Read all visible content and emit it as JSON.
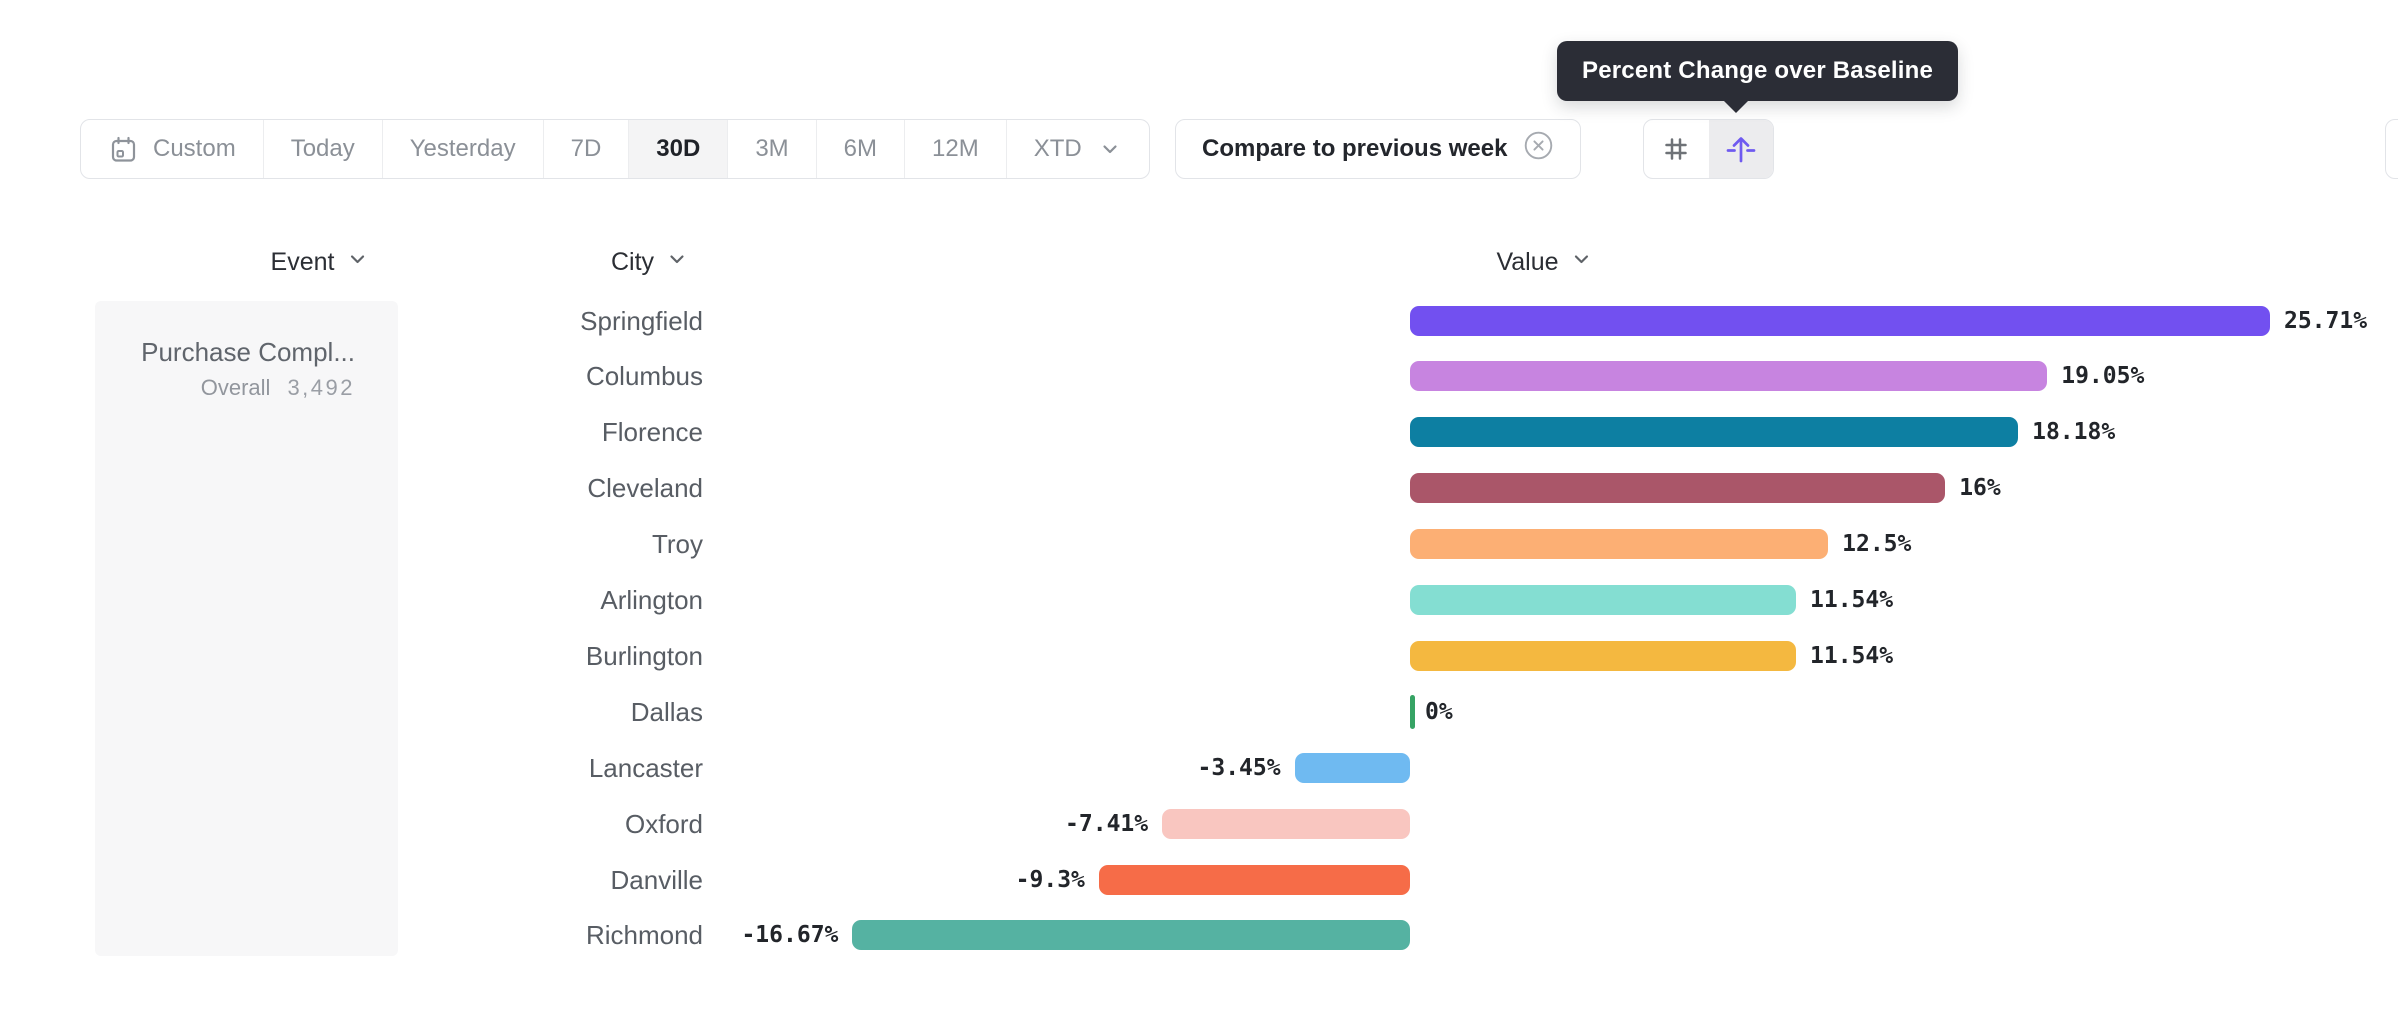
{
  "tooltip": {
    "text": "Percent Change over Baseline"
  },
  "toolbar": {
    "date_ranges": [
      {
        "label": "Custom",
        "icon": "calendar-icon",
        "selected": false,
        "trailing_icon": null
      },
      {
        "label": "Today",
        "icon": null,
        "selected": false,
        "trailing_icon": null
      },
      {
        "label": "Yesterday",
        "icon": null,
        "selected": false,
        "trailing_icon": null
      },
      {
        "label": "7D",
        "icon": null,
        "selected": false,
        "trailing_icon": null
      },
      {
        "label": "30D",
        "icon": null,
        "selected": true,
        "trailing_icon": null
      },
      {
        "label": "3M",
        "icon": null,
        "selected": false,
        "trailing_icon": null
      },
      {
        "label": "6M",
        "icon": null,
        "selected": false,
        "trailing_icon": null
      },
      {
        "label": "12M",
        "icon": null,
        "selected": false,
        "trailing_icon": null
      },
      {
        "label": "XTD",
        "icon": null,
        "selected": false,
        "trailing_icon": "chevron-down-icon"
      }
    ],
    "compare": {
      "label": "Compare to previous week",
      "remove_icon": "circle-x-icon"
    },
    "view_toggles": [
      {
        "name": "number-format",
        "icon": "hash-icon",
        "active": false,
        "color": "#6e7277"
      },
      {
        "name": "percent-change-format",
        "icon": "arrow-up-baseline-icon",
        "active": true,
        "color": "#6f5af0"
      }
    ]
  },
  "columns": [
    {
      "label": "Event",
      "icon": "chevron-down-icon"
    },
    {
      "label": "City",
      "icon": "chevron-down-icon"
    },
    {
      "label": "Value",
      "icon": "chevron-down-icon"
    }
  ],
  "event_panel": {
    "event_name": "Purchase Compl...",
    "overall_label": "Overall",
    "overall_value": "3,492"
  },
  "chart_data": {
    "type": "bar",
    "orientation": "horizontal",
    "title": "Percent Change over Baseline",
    "value_format": "percent",
    "grid": false,
    "legend": "none",
    "xlim": [
      -16.67,
      25.71
    ],
    "categories": [
      "Springfield",
      "Columbus",
      "Florence",
      "Cleveland",
      "Troy",
      "Arlington",
      "Burlington",
      "Dallas",
      "Lancaster",
      "Oxford",
      "Danville",
      "Richmond"
    ],
    "values": [
      25.71,
      19.05,
      18.18,
      16,
      12.5,
      11.54,
      11.54,
      0,
      -3.45,
      -7.41,
      -9.3,
      -16.67
    ],
    "labels": [
      "25.71%",
      "19.05%",
      "18.18%",
      "16%",
      "12.5%",
      "11.54%",
      "11.54%",
      "0%",
      "-3.45%",
      "-7.41%",
      "-9.3%",
      "-16.67%"
    ],
    "colors": [
      "#7250f0",
      "#c784e0",
      "#0d7fa2",
      "#aa5669",
      "#fcaf74",
      "#84ded2",
      "#f4b840",
      "#36a364",
      "#6fbaf1",
      "#f9c6c0",
      "#f66c48",
      "#55b2a2"
    ]
  }
}
